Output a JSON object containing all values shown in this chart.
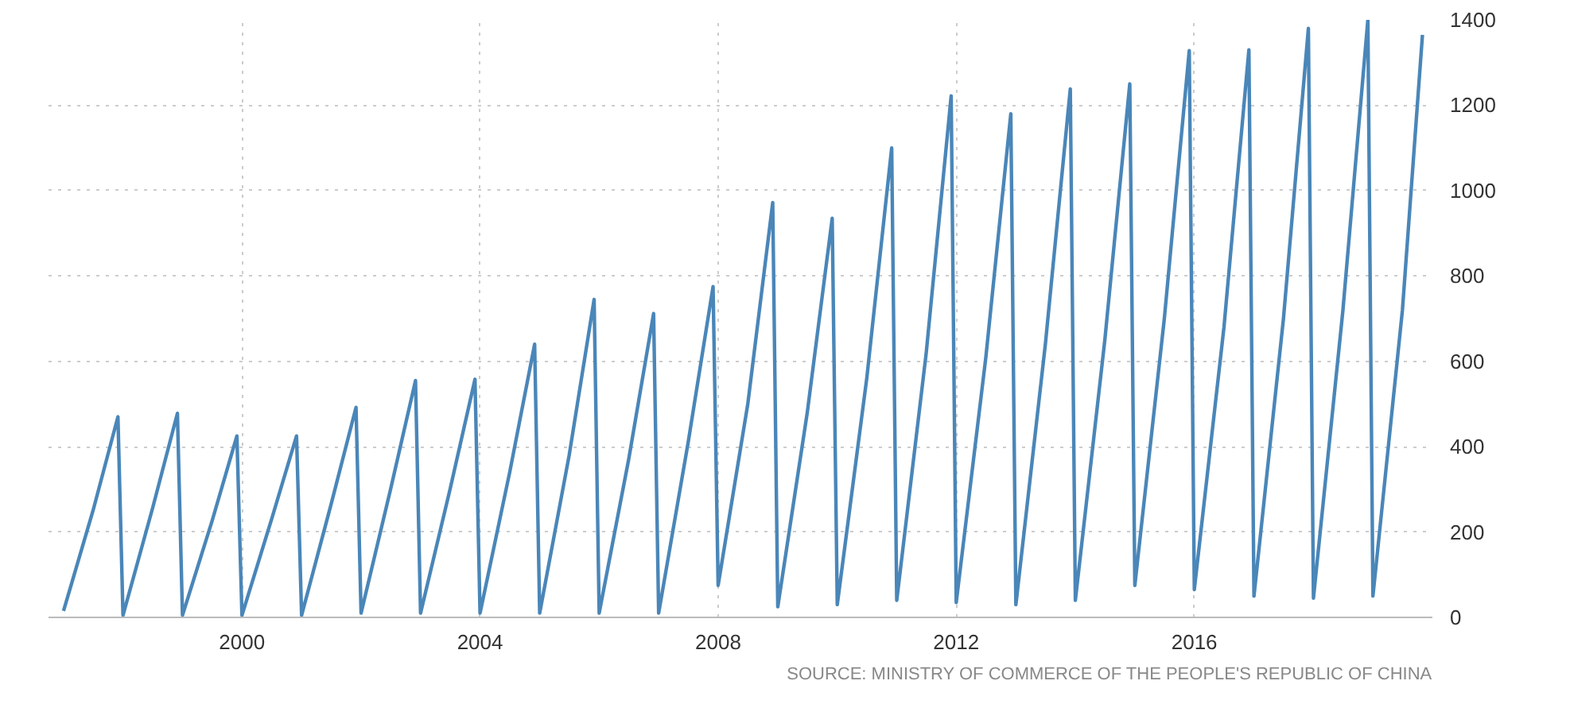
{
  "chart_data": {
    "type": "line",
    "annotations": [
      "SOURCE: MINISTRY OF COMMERCE OF THE PEOPLE'S REPUBLIC OF CHINA"
    ],
    "x": [
      "1997-01",
      "1997-07",
      "1997-12",
      "1998-01",
      "1998-07",
      "1998-12",
      "1999-01",
      "1999-07",
      "1999-12",
      "2000-01",
      "2000-07",
      "2000-12",
      "2001-01",
      "2001-07",
      "2001-12",
      "2002-01",
      "2002-07",
      "2002-12",
      "2003-01",
      "2003-07",
      "2003-12",
      "2004-01",
      "2004-07",
      "2004-12",
      "2005-01",
      "2005-07",
      "2005-12",
      "2006-01",
      "2006-07",
      "2006-12",
      "2007-01",
      "2007-07",
      "2007-12",
      "2008-01",
      "2008-07",
      "2008-12",
      "2009-01",
      "2009-07",
      "2009-12",
      "2010-01",
      "2010-07",
      "2010-12",
      "2011-01",
      "2011-07",
      "2011-12",
      "2012-01",
      "2012-07",
      "2012-12",
      "2013-01",
      "2013-07",
      "2013-12",
      "2014-01",
      "2014-07",
      "2014-12",
      "2015-01",
      "2015-07",
      "2015-12",
      "2016-01",
      "2016-07",
      "2016-12",
      "2017-01",
      "2017-07",
      "2017-12",
      "2018-01",
      "2018-07",
      "2018-12",
      "2019-01",
      "2019-07",
      "2019-11"
    ],
    "series": [
      {
        "color": "#4a86b8",
        "values": [
          15,
          250,
          470,
          5,
          255,
          478,
          5,
          225,
          425,
          5,
          230,
          425,
          5,
          265,
          492,
          10,
          300,
          555,
          10,
          300,
          558,
          10,
          340,
          640,
          10,
          380,
          745,
          10,
          370,
          712,
          10,
          410,
          775,
          75,
          500,
          972,
          25,
          480,
          935,
          30,
          560,
          1100,
          40,
          620,
          1222,
          35,
          610,
          1180,
          30,
          640,
          1238,
          40,
          650,
          1250,
          75,
          700,
          1328,
          65,
          680,
          1330,
          50,
          700,
          1380,
          45,
          720,
          1400,
          50,
          720,
          1365
        ]
      }
    ],
    "xlim": [
      "1996-10",
      "2020-01"
    ],
    "xticks": [
      "2000",
      "2004",
      "2008",
      "2012",
      "2016"
    ],
    "ylim": [
      0,
      1400
    ],
    "yticks": [
      0,
      200,
      400,
      600,
      800,
      1000,
      1200,
      1400
    ],
    "grid": true,
    "marker": "none",
    "line_style": "solid"
  }
}
